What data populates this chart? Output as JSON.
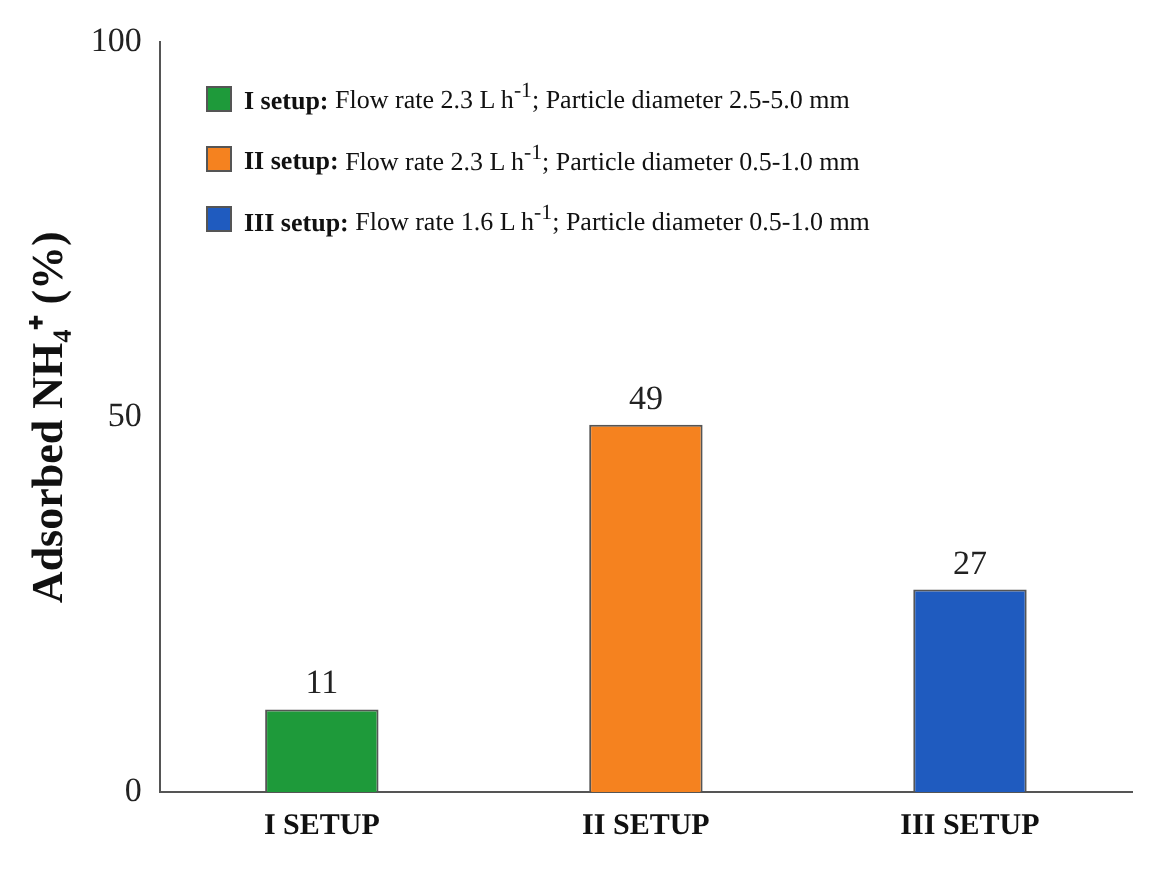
{
  "chart_data": {
    "type": "bar",
    "ylabel": "Adsorbed NH₄⁺ (%)",
    "categories": [
      "I SETUP",
      "II SETUP",
      "III SETUP"
    ],
    "stacked": true,
    "series": [
      {
        "name": "I setup: Flow rate 2.3 L h$^{-1}$; Particle diameter 2.5-5.0 mm",
        "color": "#1e9a3a",
        "values": [
          11,
          null,
          null
        ]
      },
      {
        "name": "II setup: Flow rate 2.3 L h$^{-1}$; Particle diameter 0.5-1.0 mm",
        "color": "#f5821f",
        "values": [
          null,
          49,
          null
        ]
      },
      {
        "name": "III setup: Flow rate 1.6 L h$^{-1}$; Particle diameter 0.5-1.0 mm",
        "color": "#1f5bbf",
        "values": [
          null,
          null,
          27
        ]
      }
    ],
    "ylim": [
      0,
      100
    ],
    "yticks": [
      0,
      50,
      100
    ],
    "grid": false,
    "legend": "top left",
    "data_labels": true
  }
}
